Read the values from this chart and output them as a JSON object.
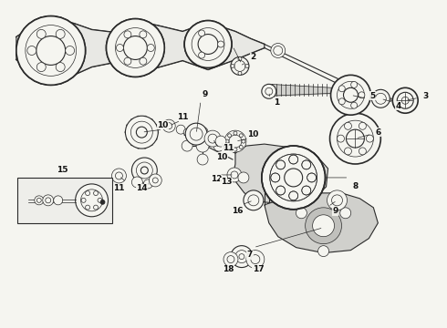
{
  "background_color": "#f5f5f0",
  "figure_width": 4.9,
  "figure_height": 3.6,
  "dpi": 100,
  "line_color": "#2a2a2a",
  "text_color": "#111111",
  "label_fontsize": 6.5,
  "lw_thin": 0.5,
  "lw_med": 0.8,
  "lw_thick": 1.2
}
